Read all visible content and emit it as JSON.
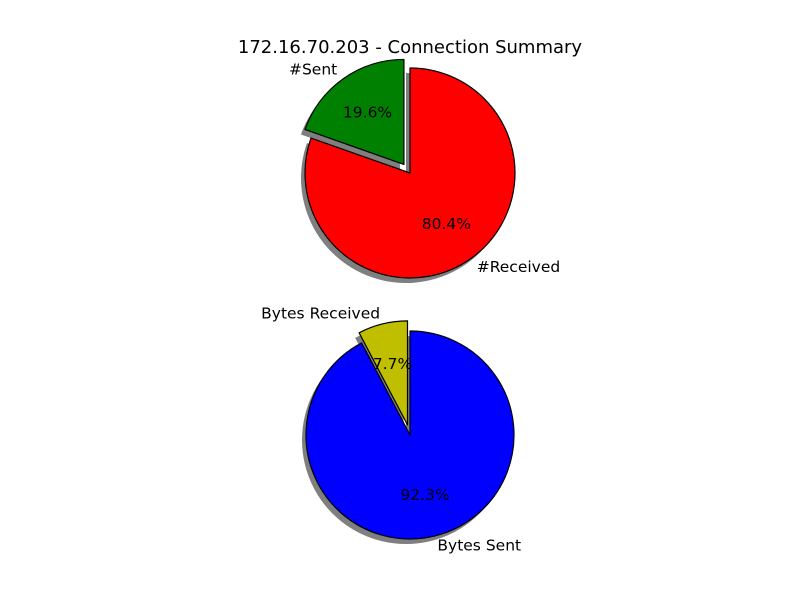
{
  "title": "172.16.70.203 - Connection Summary",
  "chart_data": [
    {
      "type": "pie",
      "labels": [
        "#Sent",
        "#Received"
      ],
      "values": [
        19.6,
        80.4
      ],
      "autopct": [
        "19.6%",
        "80.4%"
      ],
      "colors": [
        "#008000",
        "#ff0000"
      ],
      "explode": [
        0.1,
        0
      ],
      "shadow": true,
      "startangle_deg": 90
    },
    {
      "type": "pie",
      "labels": [
        "Bytes Received",
        "Bytes Sent"
      ],
      "values": [
        7.7,
        92.3
      ],
      "autopct": [
        "7.7%",
        "92.3%"
      ],
      "colors": [
        "#bfbf00",
        "#0000ff"
      ],
      "explode": [
        0.1,
        0
      ],
      "shadow": true,
      "startangle_deg": 90
    }
  ]
}
